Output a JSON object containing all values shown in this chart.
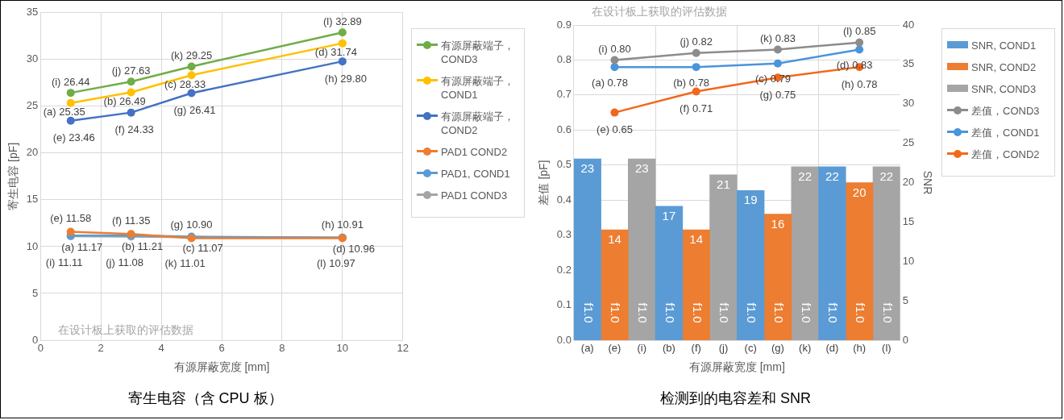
{
  "chart_data": [
    {
      "type": "line",
      "title": "寄生电容（含 CPU 板）",
      "xlabel": "有源屏蔽宽度 [mm]",
      "ylabel": "寄生电容 [pF]",
      "xlim": [
        0,
        12
      ],
      "xticks": [
        0,
        2,
        4,
        6,
        8,
        10,
        12
      ],
      "ylim": [
        0,
        35
      ],
      "yticks": [
        0,
        5,
        10,
        15,
        20,
        25,
        30,
        35
      ],
      "grid": true,
      "legend": "right",
      "marker": "circle",
      "annotations": [
        "在设计板上获取的评估数据"
      ],
      "series": [
        {
          "name": "有源屏蔽端子，COND3",
          "color": "#70ad47",
          "x": [
            1,
            3,
            5,
            10
          ],
          "values": [
            26.44,
            27.63,
            29.25,
            32.89
          ],
          "value_labels": [
            "(i) 26.44",
            "(j) 27.63",
            "(k) 29.25",
            "(l) 32.89"
          ]
        },
        {
          "name": "有源屏蔽端子，COND1",
          "color": "#ffc000",
          "x": [
            1,
            3,
            5,
            10
          ],
          "values": [
            25.35,
            26.49,
            28.33,
            31.74
          ],
          "value_labels": [
            "(a) 25.35",
            "(b) 26.49",
            "(c) 28.33",
            "(d) 31.74"
          ]
        },
        {
          "name": "有源屏蔽端子，COND2",
          "color": "#4472c4",
          "x": [
            1,
            3,
            5,
            10
          ],
          "values": [
            23.46,
            24.33,
            26.41,
            29.8
          ],
          "value_labels": [
            "(e) 23.46",
            "(f) 24.33",
            "(g) 26.41",
            "(h) 29.80"
          ]
        },
        {
          "name": "PAD1 COND2",
          "color": "#ed7d31",
          "x": [
            1,
            3,
            5,
            10
          ],
          "values": [
            11.58,
            11.35,
            10.9,
            10.91
          ],
          "value_labels": [
            "(e) 11.58",
            "(f) 11.35",
            "(g) 10.90",
            "(h) 10.91"
          ]
        },
        {
          "name": "PAD1, COND1",
          "color": "#5b9bd5",
          "x": [
            1,
            3,
            5,
            10
          ],
          "values": [
            11.17,
            11.21,
            11.07,
            10.96
          ],
          "value_labels": [
            "(a) 11.17",
            "(b) 11.21",
            "(c) 11.07",
            "(d) 10.96"
          ]
        },
        {
          "name": "PAD1 COND3",
          "color": "#a5a5a5",
          "x": [
            1,
            3,
            5,
            10
          ],
          "values": [
            11.11,
            11.08,
            11.01,
            10.97
          ],
          "value_labels": [
            "(i) 11.11",
            "(j) 11.08",
            "(k) 11.01",
            "(l) 10.97"
          ]
        }
      ]
    },
    {
      "type": "bar",
      "title": "检测到的电容差和 SNR",
      "xlabel": "有源屏蔽宽度 [mm]",
      "ylabel": "差值 [pF]",
      "y2label": "SNR",
      "categories": [
        "(a)",
        "(e)",
        "(i)",
        "(b)",
        "(f)",
        "(j)",
        "(c)",
        "(g)",
        "(k)",
        "(d)",
        "(h)",
        "(l)"
      ],
      "ylim": [
        0,
        0.9
      ],
      "yticks": [
        {
          "value": 0,
          "label": "0.0"
        },
        0.1,
        0.2,
        0.3,
        0.4,
        0.5,
        0.6,
        0.7,
        0.8,
        0.9
      ],
      "y2lim": [
        0,
        40
      ],
      "y2ticks": [
        0,
        5,
        10,
        15,
        20,
        25,
        30,
        35,
        40
      ],
      "grid": true,
      "legend": "right",
      "annotations": [
        "在设计板上获取的评估数据",
        "f1.0",
        "f1.0",
        "f1.0",
        "f1.0",
        "f1.0",
        "f1.0",
        "f1.0",
        "f1.0",
        "f1.0",
        "f1.0",
        "f1.0",
        "f1.0"
      ],
      "series": [
        {
          "name": "SNR, COND1",
          "axis": "y2",
          "color": "#5b9bd5",
          "values": [
            23,
            null,
            null,
            17,
            null,
            null,
            19,
            null,
            null,
            22,
            null,
            null
          ],
          "value_labels": [
            "23",
            null,
            null,
            "17",
            null,
            null,
            "19",
            null,
            null,
            "22",
            null,
            null
          ]
        },
        {
          "name": "SNR, COND2",
          "axis": "y2",
          "color": "#ed7d31",
          "values": [
            null,
            14,
            null,
            null,
            14,
            null,
            null,
            16,
            null,
            null,
            20,
            null
          ],
          "value_labels": [
            null,
            "14",
            null,
            null,
            "14",
            null,
            null,
            "16",
            null,
            null,
            "20",
            null
          ]
        },
        {
          "name": "SNR, COND3",
          "axis": "y2",
          "color": "#a5a5a5",
          "values": [
            null,
            null,
            23,
            null,
            null,
            21,
            null,
            null,
            22,
            null,
            null,
            22
          ],
          "value_labels": [
            null,
            null,
            "23",
            null,
            null,
            "21",
            null,
            null,
            "22",
            null,
            null,
            "22"
          ]
        },
        {
          "name": "差值，COND3",
          "type": "line",
          "marker": "circle",
          "color": "#8c8c8c",
          "values": [
            null,
            0.8,
            null,
            null,
            0.82,
            null,
            null,
            0.83,
            null,
            null,
            0.85,
            null
          ],
          "value_labels": [
            null,
            "(i) 0.80",
            null,
            null,
            "(j) 0.82",
            null,
            null,
            "(k) 0.83",
            null,
            null,
            "(l) 0.85",
            null
          ]
        },
        {
          "name": "差值，COND1",
          "type": "line",
          "marker": "circle",
          "color": "#4a94dc",
          "values": [
            null,
            0.78,
            null,
            null,
            0.78,
            null,
            null,
            0.79,
            null,
            null,
            0.83,
            null
          ],
          "value_labels": [
            null,
            "(a) 0.78",
            null,
            null,
            "(b) 0.78",
            null,
            null,
            "(c) 0.79",
            null,
            null,
            "(d) 0.83",
            null
          ]
        },
        {
          "name": "差值，COND2",
          "type": "line",
          "marker": "circle",
          "color": "#f2681a",
          "values": [
            null,
            0.65,
            null,
            null,
            0.71,
            null,
            null,
            0.75,
            null,
            null,
            0.78,
            null
          ],
          "value_labels": [
            null,
            "(e) 0.65",
            null,
            null,
            "(f) 0.71",
            null,
            null,
            "(g) 0.75",
            null,
            null,
            "(h) 0.78",
            null
          ]
        }
      ]
    }
  ]
}
